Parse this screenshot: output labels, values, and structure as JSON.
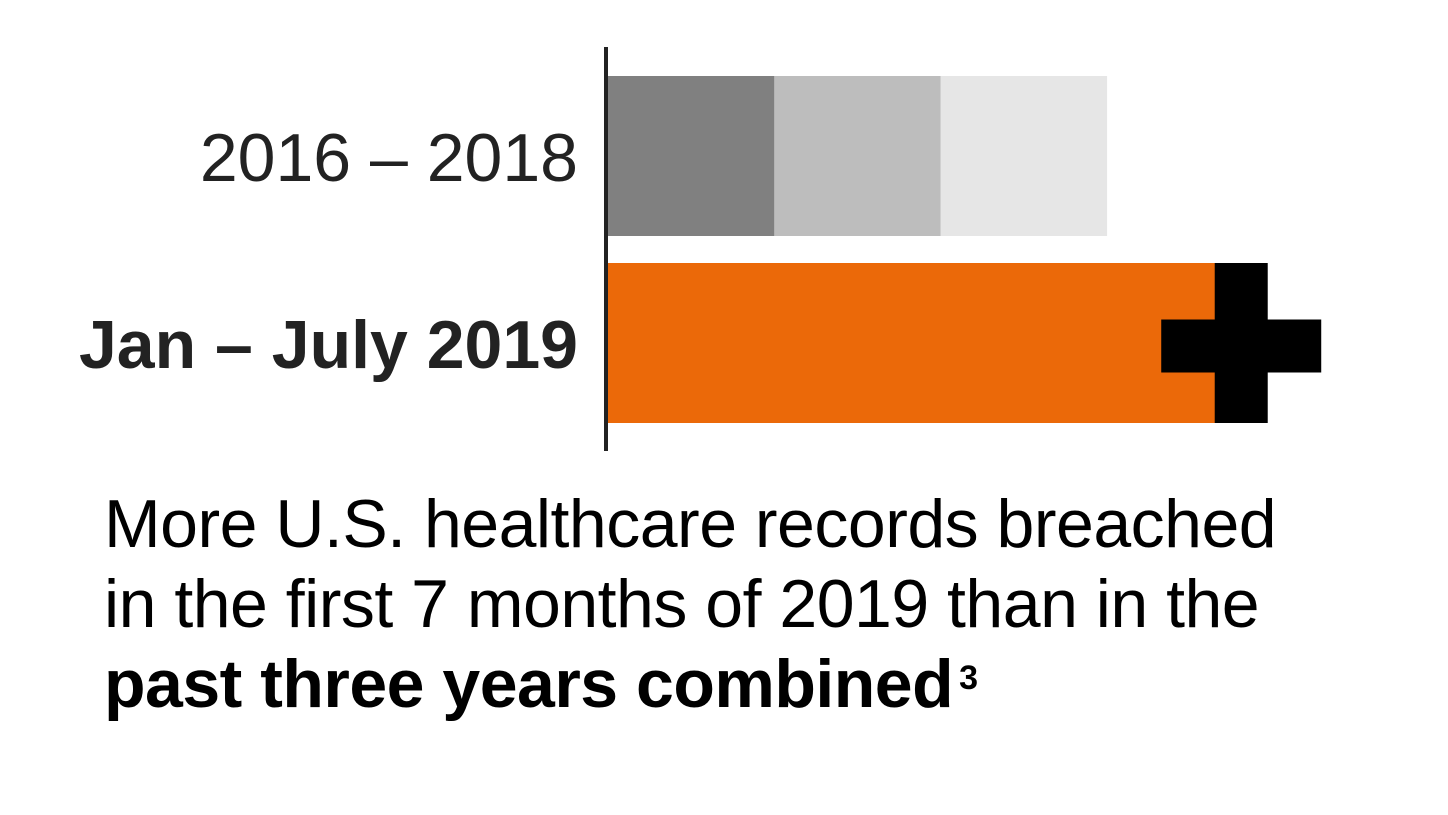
{
  "chart_data": {
    "type": "bar",
    "orientation": "horizontal",
    "stacked": true,
    "categories": [
      "2016 – 2018",
      "Jan – July 2019"
    ],
    "series": [
      {
        "segment": 1,
        "color": "#808080",
        "values": [
          1,
          null
        ]
      },
      {
        "segment": 2,
        "color": "#bdbdbd",
        "values": [
          1,
          null
        ]
      },
      {
        "segment": 3,
        "color": "#e6e6e6",
        "values": [
          1,
          null
        ]
      },
      {
        "segment": 4,
        "color": "#eb6909",
        "values": [
          null,
          3.65
        ]
      }
    ],
    "xlim": [
      0,
      4.4
    ],
    "plus_marker": {
      "category": "Jan – July 2019",
      "symbol": "plus",
      "color": "#000000"
    },
    "axis": "left baseline only",
    "grid": false,
    "legend": "none"
  },
  "caption": {
    "line1": "More U.S. healthcare records breached",
    "line2": "in the first 7 months of 2019 than in the",
    "line3_bold": "past three years combined",
    "footnote": "3"
  }
}
